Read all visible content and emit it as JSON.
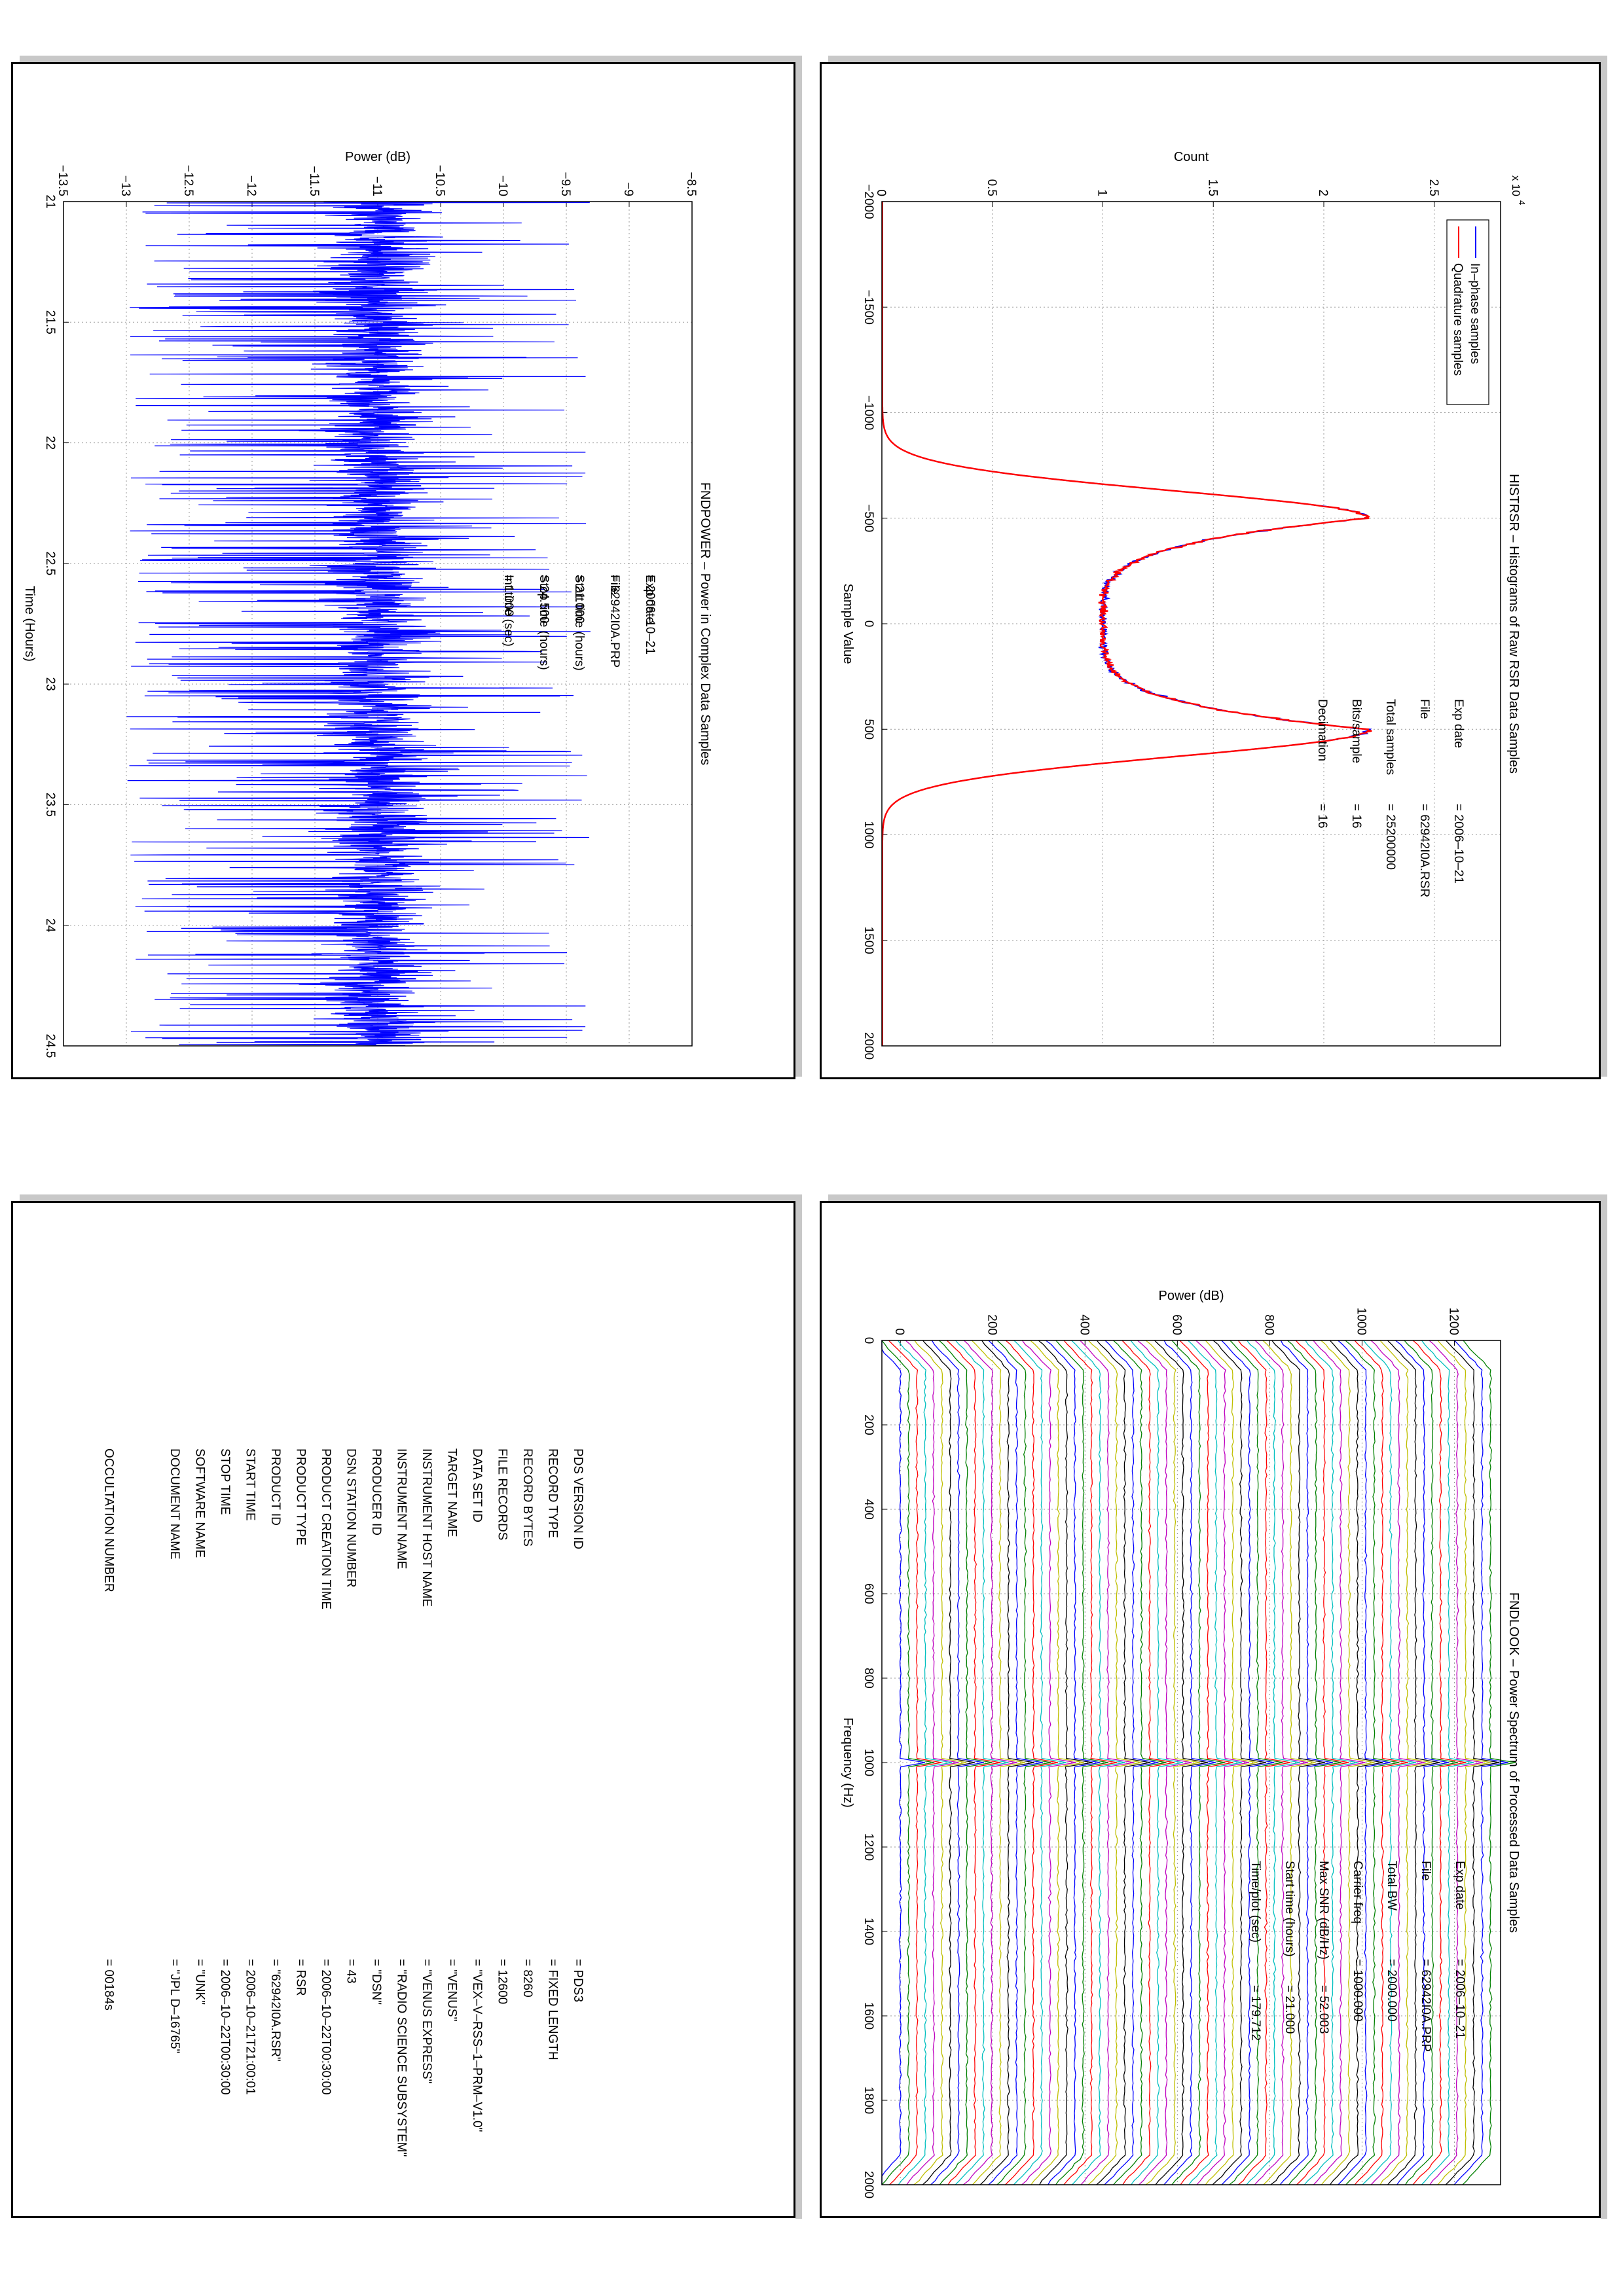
{
  "chart_data": [
    {
      "id": "histrsr",
      "type": "line",
      "title": "HISTRSR – Histograms of Raw RSR Data Samples",
      "xlabel": "Sample Value",
      "ylabel": "Count",
      "y_multiplier": "x 10",
      "y_multiplier_exp": "4",
      "xlim": [
        -2000,
        2000
      ],
      "ylim": [
        0,
        2.8
      ],
      "xticks": [
        -2000,
        -1500,
        -1000,
        -500,
        0,
        500,
        1000,
        1500,
        2000
      ],
      "yticks": [
        0,
        0.5,
        1,
        1.5,
        2,
        2.5
      ],
      "ytick_labels": [
        "0",
        "0.5",
        "1",
        "1.5",
        "2",
        "2.5"
      ],
      "grid": true,
      "legend_position": "top-left",
      "series": [
        {
          "name": "In–phase samples",
          "color": "#0000ff"
        },
        {
          "name": "Quadrature samples",
          "color": "#ff0000"
        }
      ],
      "curve": {
        "peak_left": -500,
        "peak_right": 500,
        "peak_value": 2.2,
        "center_value": 1.0,
        "cutoff": 850
      },
      "annotation": {
        "lines": [
          [
            "Exp date",
            "= 2006–10–21"
          ],
          [
            "File",
            "= 62942I0A.RSR"
          ],
          [
            "Total samples",
            "=   25200000"
          ],
          [
            "Bits/sample",
            "=        16"
          ],
          [
            "Decimation",
            "=        16"
          ]
        ]
      }
    },
    {
      "id": "fndpower",
      "type": "line",
      "title": "FNDPOWER – Power in Complex Data Samples",
      "xlabel": "Time (Hours)",
      "ylabel": "Power (dB)",
      "xlim": [
        21,
        24.5
      ],
      "ylim": [
        -13.5,
        -8.5
      ],
      "xticks": [
        21,
        21.5,
        22,
        22.5,
        23,
        23.5,
        24,
        24.5
      ],
      "yticks": [
        -13.5,
        -13,
        -12.5,
        -12,
        -11.5,
        -11,
        -10.5,
        -10,
        -9.5,
        -9,
        -8.5
      ],
      "ytick_labels": [
        "−13.5",
        "−13",
        "−12.5",
        "−12",
        "−11.5",
        "−11",
        "−10.5",
        "−10",
        "−9.5",
        "−9",
        "−8.5"
      ],
      "grid": true,
      "series": [
        {
          "name": "",
          "color": "#0000ff"
        }
      ],
      "noise": {
        "mean": -11.0,
        "spread_low": -12.3,
        "spread_high": -9.9,
        "peak_low": -13.0,
        "peak_high": -9.3
      },
      "annotation": {
        "lines": [
          [
            "Exp date",
            "= 2006–10–21"
          ],
          [
            "File",
            "= 62942I0A.PRP"
          ],
          [
            "Start time (hours)",
            "= 21.000"
          ],
          [
            "Stop time (hours)",
            "= 24.500"
          ],
          [
            "Int time (sec)",
            "=    1.000"
          ]
        ]
      }
    },
    {
      "id": "fndlook",
      "type": "line",
      "title": "FNDLOOK – Power Spectrum of Processed Data Samples",
      "xlabel": "Frequency (Hz)",
      "ylabel": "Power (dB)",
      "xlim": [
        0,
        2000
      ],
      "ylim": [
        -40,
        1300
      ],
      "xticks": [
        0,
        200,
        400,
        600,
        800,
        1000,
        1200,
        1400,
        1600,
        1800,
        2000
      ],
      "yticks": [
        0,
        200,
        400,
        600,
        800,
        1000,
        1200
      ],
      "grid": true,
      "stack": {
        "count": 72,
        "offset_step": 18,
        "peak_freq": 1000,
        "edge_drop": 60
      },
      "colors": [
        "#0000ff",
        "#008000",
        "#ff0000",
        "#00bfbf",
        "#bf00bf",
        "#bfbf00",
        "#000000"
      ],
      "annotation": {
        "lines": [
          [
            "Exp date",
            "= 2006–10–21"
          ],
          [
            "File",
            "= 62942I0A.PRP"
          ],
          [
            "Total BW",
            "=    2000.000"
          ],
          [
            "Carrier freq",
            "=    1000.000"
          ],
          [
            "Max SNR (dB/Hz)",
            "=      52.003"
          ],
          [
            "Start time (hours)",
            "=      21.000"
          ],
          [
            "Time/plot (sec)",
            "=    179.712"
          ]
        ]
      }
    }
  ],
  "label_table": {
    "rows": [
      [
        "PDS VERSION ID",
        "= PDS3"
      ],
      [
        "RECORD TYPE",
        "= FIXED LENGTH"
      ],
      [
        "RECORD BYTES",
        "= 8260"
      ],
      [
        "FILE RECORDS",
        "= 12600"
      ],
      [
        "DATA SET ID",
        "= \"VEX–V–RSS–1–PRM–V1.0\""
      ],
      [
        "TARGET NAME",
        "= \"VENUS\""
      ],
      [
        "INSTRUMENT HOST NAME",
        "= \"VENUS EXPRESS\""
      ],
      [
        "INSTRUMENT NAME",
        "= \"RADIO SCIENCE SUBSYSTEM\""
      ],
      [
        "PRODUCER ID",
        "= \"DSN\""
      ],
      [
        "DSN STATION NUMBER",
        "= 43"
      ],
      [
        "PRODUCT CREATION TIME",
        "= 2006–10–22T00:30:00"
      ],
      [
        "PRODUCT TYPE",
        "= RSR"
      ],
      [
        "PRODUCT ID",
        "= \"62942I0A.RSR\""
      ],
      [
        "START TIME",
        "= 2006–10–21T21:00:01"
      ],
      [
        "STOP TIME",
        "= 2006–10–22T00:30:00"
      ],
      [
        "SOFTWARE NAME",
        "= \"UNK\""
      ],
      [
        "DOCUMENT NAME",
        "= \"JPL D–16765\""
      ]
    ],
    "occultation": [
      "OCCULTATION NUMBER",
      "= 00184s"
    ]
  }
}
